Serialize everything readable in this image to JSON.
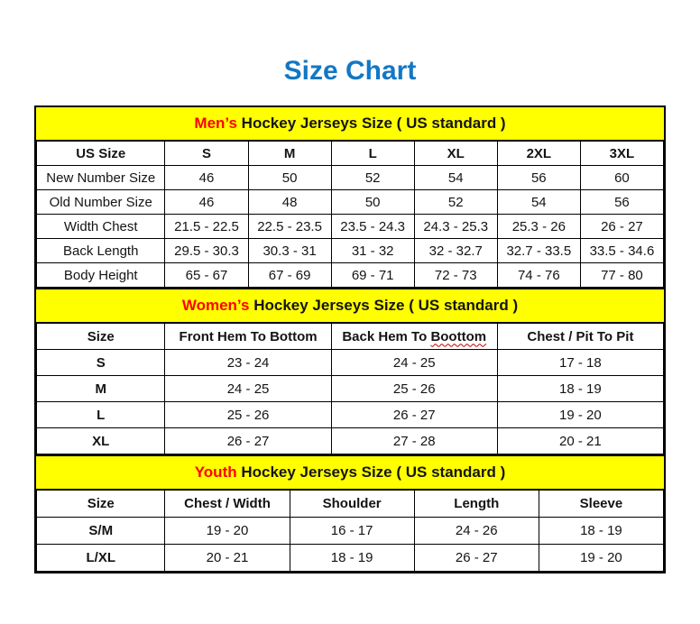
{
  "title": "Size Chart",
  "colors": {
    "title_blue": "#1377C4",
    "band_yellow": "#FFFF00",
    "accent_red": "#FF0000",
    "squiggle_red": "#C00000",
    "border_black": "#000000"
  },
  "sections": {
    "mens": {
      "band_highlight": "Men’s",
      "band_rest": " Hockey Jerseys Size ( US standard )",
      "columns": [
        "US Size",
        "S",
        "M",
        "L",
        "XL",
        "2XL",
        "3XL"
      ],
      "rows": [
        {
          "label": "New Number Size",
          "values": [
            "46",
            "50",
            "52",
            "54",
            "56",
            "60"
          ]
        },
        {
          "label": "Old Number Size",
          "values": [
            "46",
            "48",
            "50",
            "52",
            "54",
            "56"
          ]
        },
        {
          "label": "Width Chest",
          "values": [
            "21.5 - 22.5",
            "22.5 - 23.5",
            "23.5 - 24.3",
            "24.3 - 25.3",
            "25.3 - 26",
            "26 - 27"
          ]
        },
        {
          "label": "Back Length",
          "values": [
            "29.5 - 30.3",
            "30.3 - 31",
            "31 - 32",
            "32 - 32.7",
            "32.7 - 33.5",
            "33.5 - 34.6"
          ]
        },
        {
          "label": "Body Height",
          "values": [
            "65 - 67",
            "67 - 69",
            "69 - 71",
            "72 - 73",
            "74 - 76",
            "77 - 80"
          ]
        }
      ]
    },
    "womens": {
      "band_highlight": "Women’s",
      "band_rest": " Hockey Jerseys Size ( US standard )",
      "columns": [
        "Size",
        "Front Hem To Bottom",
        "Back Hem To Boottom",
        "Chest / Pit To Pit"
      ],
      "misspelled_word": "Boottom",
      "rows": [
        {
          "label": "S",
          "values": [
            "23 - 24",
            "24 - 25",
            "17 - 18"
          ]
        },
        {
          "label": "M",
          "values": [
            "24 - 25",
            "25 - 26",
            "18 - 19"
          ]
        },
        {
          "label": "L",
          "values": [
            "25 - 26",
            "26 - 27",
            "19 - 20"
          ]
        },
        {
          "label": "XL",
          "values": [
            "26 - 27",
            "27 - 28",
            "20 - 21"
          ]
        }
      ]
    },
    "youth": {
      "band_highlight": "Youth",
      "band_rest": " Hockey Jerseys Size ( US standard )",
      "columns": [
        "Size",
        "Chest / Width",
        "Shoulder",
        "Length",
        "Sleeve"
      ],
      "rows": [
        {
          "label": "S/M",
          "values": [
            "19 - 20",
            "16 - 17",
            "24 - 26",
            "18 - 19"
          ]
        },
        {
          "label": "L/XL",
          "values": [
            "20 - 21",
            "18 - 19",
            "26 - 27",
            "19 - 20"
          ]
        }
      ]
    }
  }
}
